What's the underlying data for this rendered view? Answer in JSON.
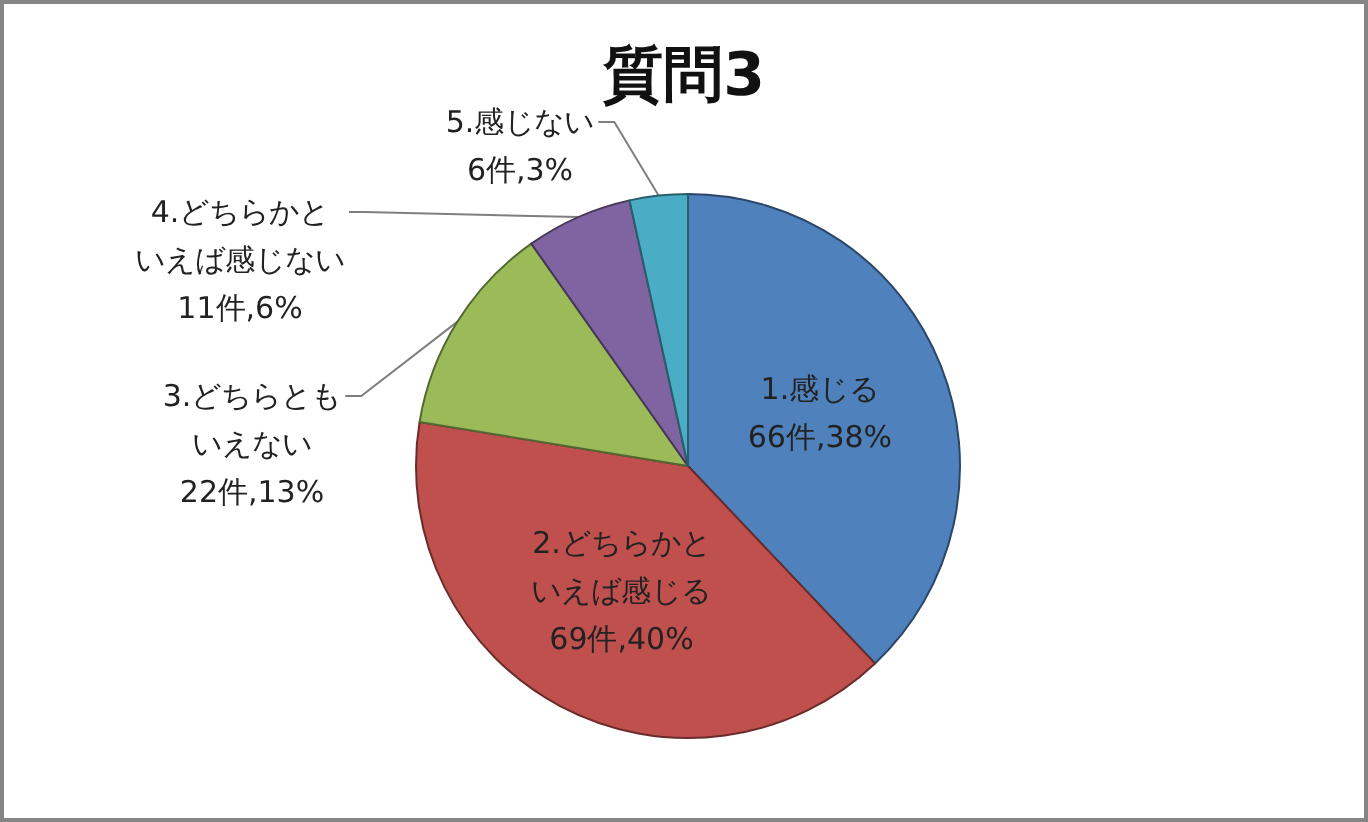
{
  "chart_data": {
    "type": "pie",
    "title": "質問3",
    "categories": [
      "1.感じる",
      "2.どちらかといえば感じる",
      "3.どちらともいえない",
      "4.どちらかといえば感じない",
      "5.感じない"
    ],
    "values": [
      66,
      69,
      22,
      11,
      6
    ],
    "value_labels": [
      "66件,38%",
      "69件,40%",
      "22件,13%",
      "11件,6%",
      "6件,3%"
    ],
    "colors": [
      "#4f81bd",
      "#c0504d",
      "#9bbb59",
      "#8064a2",
      "#4bacc6"
    ]
  }
}
